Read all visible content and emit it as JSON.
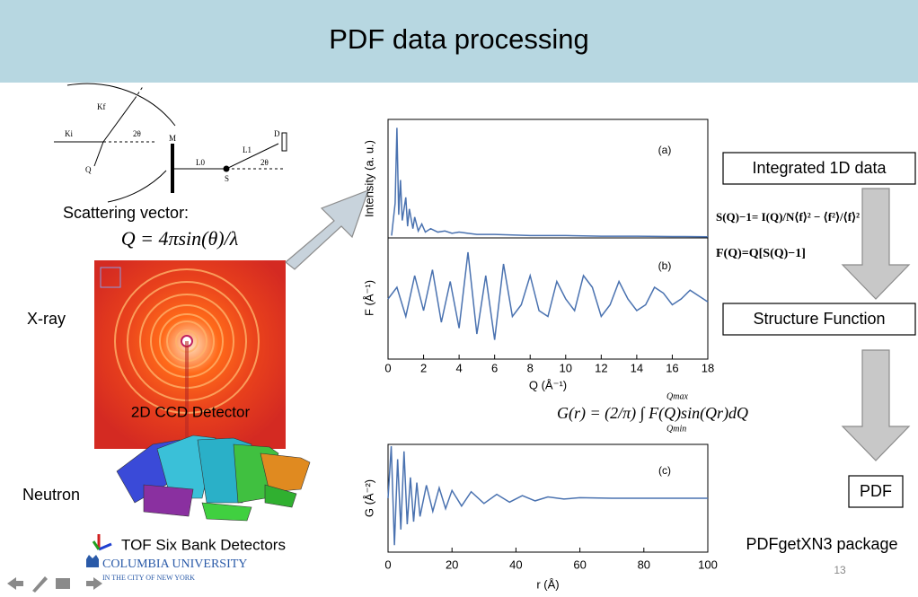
{
  "header": {
    "title": "PDF data processing"
  },
  "scattering": {
    "labels": [
      "Ki",
      "Kf",
      "2θ",
      "Q",
      "M",
      "L0",
      "S",
      "L1",
      "D",
      "2θ"
    ],
    "caption": "Scattering vector:",
    "formula": "Q = 4πsin(θ)/λ"
  },
  "sources": {
    "xray": "X-ray",
    "detector": "2D CCD Detector",
    "neutron": "Neutron",
    "neutron_detector": "TOF Six Bank Detectors"
  },
  "logo": {
    "name": "COLUMBIA UNIVERSITY",
    "sub": "IN THE CITY OF NEW YORK"
  },
  "plot_q": {
    "xlabel": "Q (Å⁻¹)",
    "xlim": [
      0,
      18
    ],
    "xticks": [
      0,
      2,
      4,
      6,
      8,
      10,
      12,
      14,
      16,
      18
    ],
    "panels": [
      {
        "tag": "(a)",
        "ylabel": "Intensity (a. u.)",
        "ylim": [
          0,
          100
        ],
        "x": [
          0.2,
          0.4,
          0.5,
          0.6,
          0.7,
          0.8,
          1.0,
          1.1,
          1.2,
          1.4,
          1.5,
          1.7,
          1.9,
          2.1,
          2.4,
          2.8,
          3.2,
          3.6,
          4.0,
          4.5,
          5,
          6,
          7,
          8,
          9,
          10,
          12,
          14,
          16,
          18
        ],
        "y": [
          2,
          30,
          95,
          20,
          50,
          15,
          35,
          10,
          25,
          8,
          18,
          6,
          12,
          5,
          8,
          5,
          6,
          4,
          5,
          4,
          3,
          3,
          2.5,
          2,
          2,
          2,
          1.5,
          1.5,
          1.2,
          1
        ]
      },
      {
        "tag": "(b)",
        "ylabel": "F (Å⁻¹)",
        "ylim": [
          -10,
          10
        ],
        "x": [
          0,
          0.5,
          1,
          1.5,
          2,
          2.5,
          3,
          3.5,
          4,
          4.5,
          5,
          5.5,
          6,
          6.5,
          7,
          7.5,
          8,
          8.5,
          9,
          9.5,
          10,
          10.5,
          11,
          11.5,
          12,
          12.5,
          13,
          13.5,
          14,
          14.5,
          15,
          15.5,
          16,
          16.5,
          17,
          17.5,
          18
        ],
        "y": [
          0,
          2,
          -3,
          4,
          -2,
          5,
          -4,
          3,
          -5,
          8,
          -6,
          4,
          -7,
          6,
          -3,
          -1,
          4,
          -2,
          -3,
          3,
          0,
          -2,
          4,
          2,
          -3,
          -1,
          3,
          0,
          -2,
          -1,
          2,
          1,
          -1,
          0,
          1.5,
          0.5,
          -0.5
        ]
      }
    ]
  },
  "plot_r": {
    "xlabel": "r (Å)",
    "xlim": [
      0,
      100
    ],
    "xticks": [
      0,
      20,
      40,
      60,
      80,
      100
    ],
    "panel": {
      "tag": "(c)",
      "ylabel": "G (Å⁻²)",
      "ylim": [
        -20,
        20
      ],
      "x": [
        0,
        1,
        2,
        3,
        4,
        5,
        6,
        7,
        8,
        9,
        10,
        12,
        14,
        16,
        18,
        20,
        23,
        26,
        30,
        34,
        38,
        42,
        46,
        50,
        55,
        60,
        70,
        80,
        90,
        100
      ],
      "y": [
        0,
        20,
        -18,
        15,
        -12,
        18,
        -10,
        8,
        -9,
        6,
        -7,
        5,
        -5,
        4,
        -4,
        3,
        -3,
        2.5,
        -2,
        1.5,
        -1.5,
        1,
        -1,
        0.5,
        -0.3,
        0.2,
        0,
        0,
        0,
        0
      ]
    }
  },
  "steps": {
    "integrated": "Integrated 1D data",
    "sq": "S(Q)−1= I(Q)/N⟨f⟩² − ⟨f²⟩/⟨f⟩²",
    "fq": "F(Q)=Q[S(Q)−1]",
    "structure": "Structure Function",
    "gr": "G(r) = (2/π) ∫ F(Q)sin(Qr)dQ",
    "gr_lower": "Qmin",
    "gr_upper": "Qmax",
    "pdf": "PDF",
    "package": "PDFgetXN3 package"
  },
  "page_number": "13"
}
